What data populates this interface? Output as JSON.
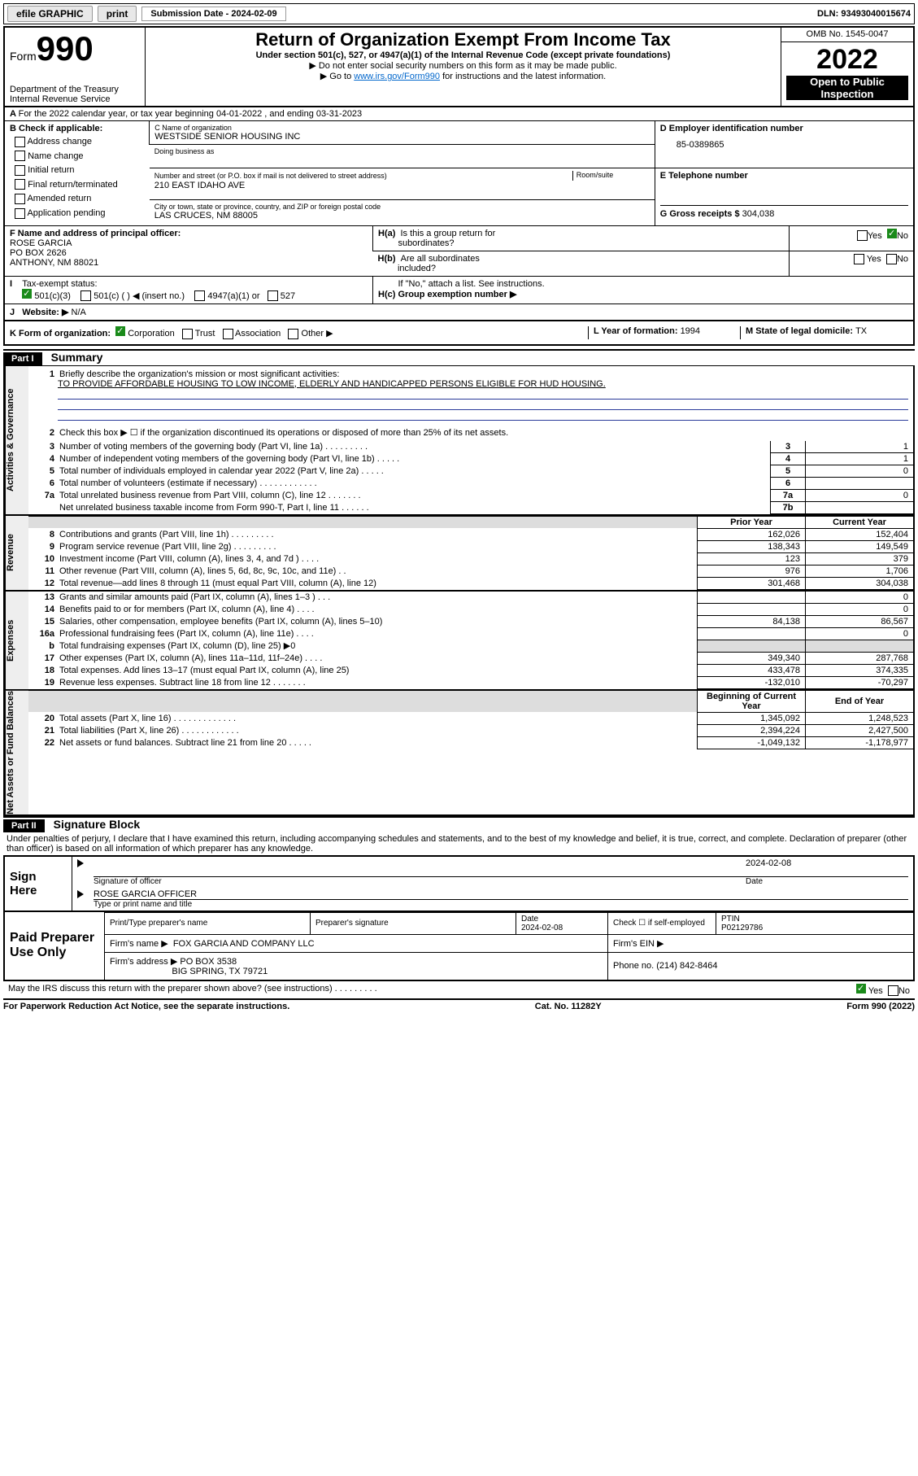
{
  "topbar": {
    "efile": "efile GRAPHIC",
    "print": "print",
    "subdate_label": "Submission Date - 2024-02-09",
    "dln": "DLN: 93493040015674"
  },
  "header": {
    "form_word": "Form",
    "form_num": "990",
    "title": "Return of Organization Exempt From Income Tax",
    "sub1": "Under section 501(c), 527, or 4947(a)(1) of the Internal Revenue Code (except private foundations)",
    "sub2": "▶ Do not enter social security numbers on this form as it may be made public.",
    "sub3_pre": "▶ Go to ",
    "sub3_link": "www.irs.gov/Form990",
    "sub3_post": " for instructions and the latest information.",
    "omb": "OMB No. 1545-0047",
    "year": "2022",
    "open": "Open to Public Inspection",
    "dept": "Department of the Treasury",
    "irs": "Internal Revenue Service"
  },
  "sectionA": {
    "a_line": "For the 2022 calendar year, or tax year beginning 04-01-2022    , and ending 03-31-2023",
    "b_label": "B Check if applicable:",
    "b_items": [
      "Address change",
      "Name change",
      "Initial return",
      "Final return/terminated",
      "Amended return",
      "Application pending"
    ],
    "c_label": "C Name of organization",
    "c_name": "WESTSIDE SENIOR HOUSING INC",
    "dba_label": "Doing business as",
    "addr_label": "Number and street (or P.O. box if mail is not delivered to street address)",
    "room_label": "Room/suite",
    "addr": "210 EAST IDAHO AVE",
    "city_label": "City or town, state or province, country, and ZIP or foreign postal code",
    "city": "LAS CRUCES, NM  88005",
    "d_label": "D Employer identification number",
    "d_val": "85-0389865",
    "e_label": "E Telephone number",
    "g_label": "G Gross receipts $ ",
    "g_val": "304,038",
    "f_label": "F Name and address of principal officer:",
    "f_name": "ROSE GARCIA",
    "f_addr1": "PO BOX 2626",
    "f_addr2": "ANTHONY, NM  88021",
    "ha_label": "H(a)  Is this a group return for subordinates?",
    "hb_label": "H(b)  Are all subordinates included?",
    "hb_note": "If \"No,\" attach a list. See instructions.",
    "hc_label": "H(c)  Group exemption number ▶",
    "i_label": "Tax-exempt status:",
    "i_501c3": "501(c)(3)",
    "i_501c": "501(c) (  ) ◀ (insert no.)",
    "i_4947": "4947(a)(1) or",
    "i_527": "527",
    "j_label": "Website: ▶",
    "j_val": "N/A",
    "k_label": "K Form of organization:",
    "k_corp": "Corporation",
    "k_trust": "Trust",
    "k_assoc": "Association",
    "k_other": "Other ▶",
    "l_label": "L Year of formation: ",
    "l_val": "1994",
    "m_label": "M State of legal domicile: ",
    "m_val": "TX",
    "yes": "Yes",
    "no": "No"
  },
  "part1": {
    "header": "Part I",
    "title": "Summary",
    "l1": "Briefly describe the organization's mission or most significant activities:",
    "l1_text": "TO PROVIDE AFFORDABLE HOUSING TO LOW INCOME, ELDERLY AND HANDICAPPED PERSONS ELIGIBLE FOR HUD HOUSING.",
    "l2": "Check this box ▶ ☐  if the organization discontinued its operations or disposed of more than 25% of its net assets.",
    "rows_gov": [
      {
        "n": "3",
        "t": "Number of voting members of the governing body (Part VI, line 1a)   .   .   .   .   .   .   .   .   .",
        "lab": "3",
        "v": "1"
      },
      {
        "n": "4",
        "t": "Number of independent voting members of the governing body (Part VI, line 1b)   .   .   .   .   .",
        "lab": "4",
        "v": "1"
      },
      {
        "n": "5",
        "t": "Total number of individuals employed in calendar year 2022 (Part V, line 2a)   .   .   .   .   .",
        "lab": "5",
        "v": "0"
      },
      {
        "n": "6",
        "t": "Total number of volunteers (estimate if necessary)   .   .   .   .   .   .   .   .   .   .   .   .",
        "lab": "6",
        "v": ""
      },
      {
        "n": "7a",
        "t": "Total unrelated business revenue from Part VIII, column (C), line 12   .   .   .   .   .   .   .",
        "lab": "7a",
        "v": "0"
      },
      {
        "n": "",
        "t": "Net unrelated business taxable income from Form 990-T, Part I, line 11   .   .   .   .   .   .",
        "lab": "7b",
        "v": ""
      }
    ],
    "prior_year": "Prior Year",
    "current_year": "Current Year",
    "rows_rev": [
      {
        "n": "8",
        "t": "Contributions and grants (Part VIII, line 1h)   .   .   .   .   .   .   .   .   .",
        "p": "162,026",
        "c": "152,404"
      },
      {
        "n": "9",
        "t": "Program service revenue (Part VIII, line 2g)   .   .   .   .   .   .   .   .   .",
        "p": "138,343",
        "c": "149,549"
      },
      {
        "n": "10",
        "t": "Investment income (Part VIII, column (A), lines 3, 4, and 7d )   .   .   .   .",
        "p": "123",
        "c": "379"
      },
      {
        "n": "11",
        "t": "Other revenue (Part VIII, column (A), lines 5, 6d, 8c, 9c, 10c, and 11e)   .   .",
        "p": "976",
        "c": "1,706"
      },
      {
        "n": "12",
        "t": "Total revenue—add lines 8 through 11 (must equal Part VIII, column (A), line 12)",
        "p": "301,468",
        "c": "304,038"
      }
    ],
    "rows_exp": [
      {
        "n": "13",
        "t": "Grants and similar amounts paid (Part IX, column (A), lines 1–3 )   .   .   .",
        "p": "",
        "c": "0"
      },
      {
        "n": "14",
        "t": "Benefits paid to or for members (Part IX, column (A), line 4)   .   .   .   .",
        "p": "",
        "c": "0"
      },
      {
        "n": "15",
        "t": "Salaries, other compensation, employee benefits (Part IX, column (A), lines 5–10)",
        "p": "84,138",
        "c": "86,567"
      },
      {
        "n": "16a",
        "t": "Professional fundraising fees (Part IX, column (A), line 11e)   .   .   .   .",
        "p": "",
        "c": "0"
      },
      {
        "n": "b",
        "t": "Total fundraising expenses (Part IX, column (D), line 25) ▶0",
        "p": null,
        "c": null
      },
      {
        "n": "17",
        "t": "Other expenses (Part IX, column (A), lines 11a–11d, 11f–24e)   .   .   .   .",
        "p": "349,340",
        "c": "287,768"
      },
      {
        "n": "18",
        "t": "Total expenses. Add lines 13–17 (must equal Part IX, column (A), line 25)",
        "p": "433,478",
        "c": "374,335"
      },
      {
        "n": "19",
        "t": "Revenue less expenses. Subtract line 18 from line 12   .   .   .   .   .   .   .",
        "p": "-132,010",
        "c": "-70,297"
      }
    ],
    "beg_year": "Beginning of Current Year",
    "end_year": "End of Year",
    "rows_net": [
      {
        "n": "20",
        "t": "Total assets (Part X, line 16)   .   .   .   .   .   .   .   .   .   .   .   .   .",
        "p": "1,345,092",
        "c": "1,248,523"
      },
      {
        "n": "21",
        "t": "Total liabilities (Part X, line 26)   .   .   .   .   .   .   .   .   .   .   .   .",
        "p": "2,394,224",
        "c": "2,427,500"
      },
      {
        "n": "22",
        "t": "Net assets or fund balances. Subtract line 21 from line 20   .   .   .   .   .",
        "p": "-1,049,132",
        "c": "-1,178,977"
      }
    ],
    "sidelabels": {
      "gov": "Activities & Governance",
      "rev": "Revenue",
      "exp": "Expenses",
      "net": "Net Assets or Fund Balances"
    }
  },
  "part2": {
    "header": "Part II",
    "title": "Signature Block",
    "decl": "Under penalties of perjury, I declare that I have examined this return, including accompanying schedules and statements, and to the best of my knowledge and belief, it is true, correct, and complete. Declaration of preparer (other than officer) is based on all information of which preparer has any knowledge.",
    "sign_here": "Sign Here",
    "sig_officer": "Signature of officer",
    "date": "Date",
    "sig_date": "2024-02-08",
    "officer": "ROSE GARCIA  OFFICER",
    "officer_sub": "Type or print name and title",
    "paid": "Paid Preparer Use Only",
    "prep_name_lbl": "Print/Type preparer's name",
    "prep_sig_lbl": "Preparer's signature",
    "date_lbl": "Date",
    "date_v": "2024-02-08",
    "check_lbl": "Check ☐ if self-employed",
    "ptin_lbl": "PTIN",
    "ptin": "P02129786",
    "firm_name_lbl": "Firm's name     ▶",
    "firm_name": "FOX GARCIA AND COMPANY LLC",
    "firm_ein_lbl": "Firm's EIN ▶",
    "firm_addr_lbl": "Firm's address ▶",
    "firm_addr1": "PO BOX 3538",
    "firm_addr2": "BIG SPRING, TX  79721",
    "phone_lbl": "Phone no. ",
    "phone": "(214) 842-8464",
    "may_irs": "May the IRS discuss this return with the preparer shown above? (see instructions)   .   .   .   .   .   .   .   .   .",
    "paperwork": "For Paperwork Reduction Act Notice, see the separate instructions.",
    "cat": "Cat. No. 11282Y",
    "form_foot": "Form 990 (2022)"
  }
}
